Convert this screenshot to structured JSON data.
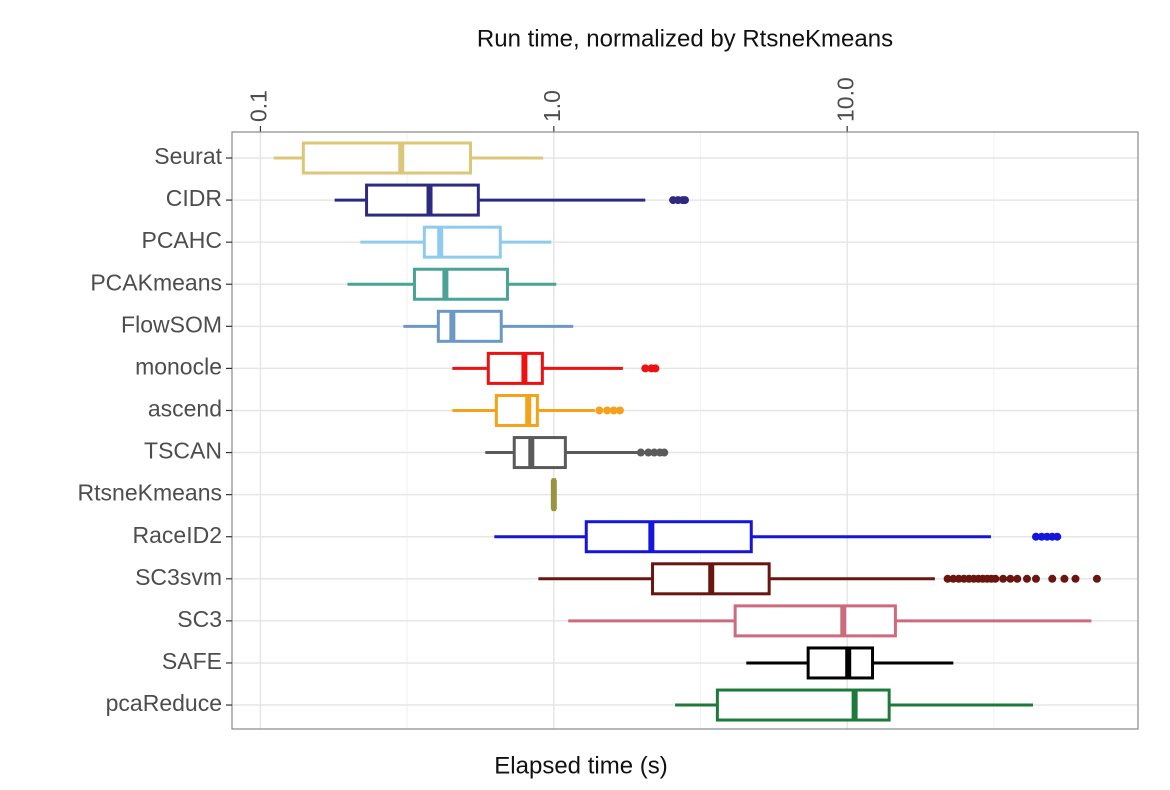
{
  "chart_data": {
    "type": "box",
    "title": "Run time, normalized by RtsneKmeans",
    "x_label": "Elapsed time (s)",
    "log_x": true,
    "grid": true,
    "xlim": [
      0.08,
      98
    ],
    "xticks": [
      0.1,
      {
        "value": 1,
        "label": "1.0"
      },
      {
        "value": 10,
        "label": "10.0"
      }
    ],
    "minor_xticks": [
      0.316,
      3.16,
      31.6
    ],
    "categories": [
      "Seurat",
      "CIDR",
      "PCAHC",
      "PCAKmeans",
      "FlowSOM",
      "monocle",
      "ascend",
      "TSCAN",
      "RtsneKmeans",
      "RaceID2",
      "SC3svm",
      "SC3",
      "SAFE",
      "pcaReduce"
    ],
    "boxes": [
      {
        "color": "#dcc67a",
        "low": 0.111,
        "q1": 0.14,
        "median": 0.302,
        "q3": 0.52,
        "high": 0.92,
        "outliers": []
      },
      {
        "color": "#2e2a7f",
        "low": 0.179,
        "q1": 0.23,
        "median": 0.377,
        "q3": 0.553,
        "high": 2.05,
        "outliers": [
          2.55,
          2.65,
          2.75,
          2.8
        ]
      },
      {
        "color": "#8ecbee",
        "low": 0.219,
        "q1": 0.362,
        "median": 0.41,
        "q3": 0.657,
        "high": 0.98,
        "outliers": []
      },
      {
        "color": "#4aa394",
        "low": 0.198,
        "q1": 0.335,
        "median": 0.427,
        "q3": 0.695,
        "high": 1.02,
        "outliers": []
      },
      {
        "color": "#6c98c6",
        "low": 0.307,
        "q1": 0.404,
        "median": 0.451,
        "q3": 0.662,
        "high": 1.165,
        "outliers": []
      },
      {
        "color": "#ee1111",
        "low": 0.451,
        "q1": 0.598,
        "median": 0.794,
        "q3": 0.914,
        "high": 1.72,
        "outliers": [
          2.05,
          2.15,
          2.22
        ]
      },
      {
        "color": "#f5a21b",
        "low": 0.451,
        "q1": 0.637,
        "median": 0.818,
        "q3": 0.879,
        "high": 1.38,
        "outliers": [
          1.43,
          1.52,
          1.6,
          1.68
        ]
      },
      {
        "color": "#5a5a5a",
        "low": 0.584,
        "q1": 0.733,
        "median": 0.838,
        "q3": 1.095,
        "high": 1.97,
        "outliers": [
          1.98,
          2.1,
          2.2,
          2.3,
          2.38
        ]
      },
      {
        "color": "#9a9440",
        "low": 0.99,
        "q1": 0.995,
        "median": 1,
        "q3": 1.005,
        "high": 1.01,
        "outliers": []
      },
      {
        "color": "#1515dd",
        "low": 0.627,
        "q1": 1.29,
        "median": 2.15,
        "q3": 4.71,
        "high": 30.9,
        "outliers": [
          44,
          46,
          48,
          50,
          52
        ]
      },
      {
        "color": "#6b1510",
        "low": 0.886,
        "q1": 2.17,
        "median": 3.44,
        "q3": 5.42,
        "high": 19.9,
        "outliers": [
          22,
          23,
          24,
          25,
          26,
          27,
          28,
          29,
          30,
          31,
          32,
          34,
          36,
          38,
          41,
          44,
          50,
          55,
          60,
          71
        ]
      },
      {
        "color": "#cc6a7e",
        "low": 1.12,
        "q1": 4.15,
        "median": 9.7,
        "q3": 14.6,
        "high": 68,
        "outliers": []
      },
      {
        "color": "#000000",
        "low": 4.53,
        "q1": 7.36,
        "median": 10.08,
        "q3": 12.2,
        "high": 23,
        "outliers": []
      },
      {
        "color": "#1d7a3a",
        "low": 2.59,
        "q1": 3.61,
        "median": 10.6,
        "q3": 13.9,
        "high": 43,
        "outliers": []
      }
    ]
  }
}
